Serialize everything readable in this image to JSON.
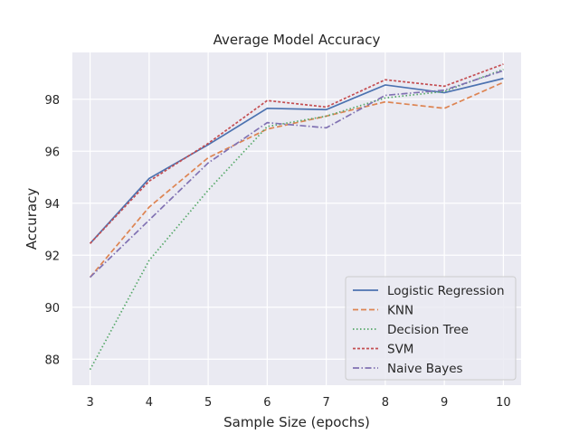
{
  "chart_data": {
    "type": "line",
    "title": "Average Model Accuracy",
    "xlabel": "Sample Size (epochs)",
    "ylabel": "Accuracy",
    "x": [
      3,
      4,
      5,
      6,
      7,
      8,
      9,
      10
    ],
    "xlim": [
      2.7,
      10.3
    ],
    "ylim": [
      87.0,
      99.8
    ],
    "xticks": [
      "3",
      "4",
      "5",
      "6",
      "7",
      "8",
      "9",
      "10"
    ],
    "yticks": [
      "88",
      "90",
      "92",
      "94",
      "96",
      "98"
    ],
    "ytick_values": [
      88,
      90,
      92,
      94,
      96,
      98
    ],
    "grid": true,
    "legend_position": "bottom-right",
    "series": [
      {
        "name": "Logistic Regression",
        "color": "#4c72b0",
        "dash": "solid",
        "values": [
          92.45,
          94.95,
          96.25,
          97.65,
          97.6,
          98.55,
          98.25,
          98.8
        ]
      },
      {
        "name": "KNN",
        "color": "#dd8452",
        "dash": "dashed",
        "values": [
          91.15,
          93.85,
          95.75,
          96.85,
          97.35,
          97.9,
          97.65,
          98.65
        ]
      },
      {
        "name": "Decision Tree",
        "color": "#55a868",
        "dash": "dotted",
        "values": [
          87.6,
          91.8,
          94.5,
          96.95,
          97.35,
          98.05,
          98.3,
          99.15
        ]
      },
      {
        "name": "SVM",
        "color": "#c44e52",
        "dash": "densedash",
        "values": [
          92.45,
          94.85,
          96.3,
          97.95,
          97.7,
          98.75,
          98.5,
          99.35
        ]
      },
      {
        "name": "Naive Bayes",
        "color": "#8172b3",
        "dash": "dashdot",
        "values": [
          91.15,
          93.35,
          95.55,
          97.1,
          96.9,
          98.15,
          98.35,
          99.1
        ]
      }
    ]
  }
}
